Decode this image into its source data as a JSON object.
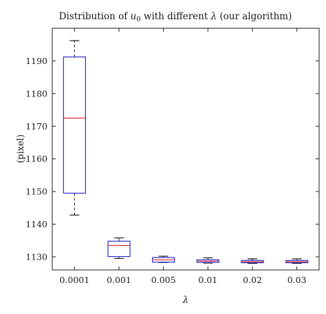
{
  "chart_data": {
    "type": "box",
    "title": {
      "prefix": "Distribution of ",
      "var": "u",
      "var_sub": "0",
      "middle": " with different ",
      "lambda": "λ",
      "suffix": " (our algorithm)"
    },
    "xlabel": "λ",
    "ylabel": "(pixel)",
    "ylim": [
      1126,
      1200
    ],
    "yticks": [
      1130,
      1140,
      1150,
      1160,
      1170,
      1180,
      1190
    ],
    "categories": [
      "0.0001",
      "0.001",
      "0.005",
      "0.01",
      "0.02",
      "0.03"
    ],
    "boxes": [
      {
        "category": "0.0001",
        "whisker_low": 1142.8,
        "q1": 1149.5,
        "median": 1172.5,
        "q3": 1191.2,
        "whisker_high": 1196.2
      },
      {
        "category": "0.001",
        "whisker_low": 1129.5,
        "q1": 1130.1,
        "median": 1133.5,
        "q3": 1134.8,
        "whisker_high": 1135.8
      },
      {
        "category": "0.005",
        "whisker_low": 1128.3,
        "q1": 1128.4,
        "median": 1129.1,
        "q3": 1129.8,
        "whisker_high": 1130.2
      },
      {
        "category": "0.01",
        "whisker_low": 1128.1,
        "q1": 1128.3,
        "median": 1128.7,
        "q3": 1129.1,
        "whisker_high": 1129.7
      },
      {
        "category": "0.02",
        "whisker_low": 1128.0,
        "q1": 1128.2,
        "median": 1128.5,
        "q3": 1128.9,
        "whisker_high": 1129.4
      },
      {
        "category": "0.03",
        "whisker_low": 1128.0,
        "q1": 1128.2,
        "median": 1128.5,
        "q3": 1128.9,
        "whisker_high": 1129.4
      }
    ],
    "colors": {
      "box": "#2b2bc8",
      "median": "#d62020",
      "whisker": "#1a1a1a",
      "axes": "#1a1a1a"
    },
    "grid": false
  }
}
